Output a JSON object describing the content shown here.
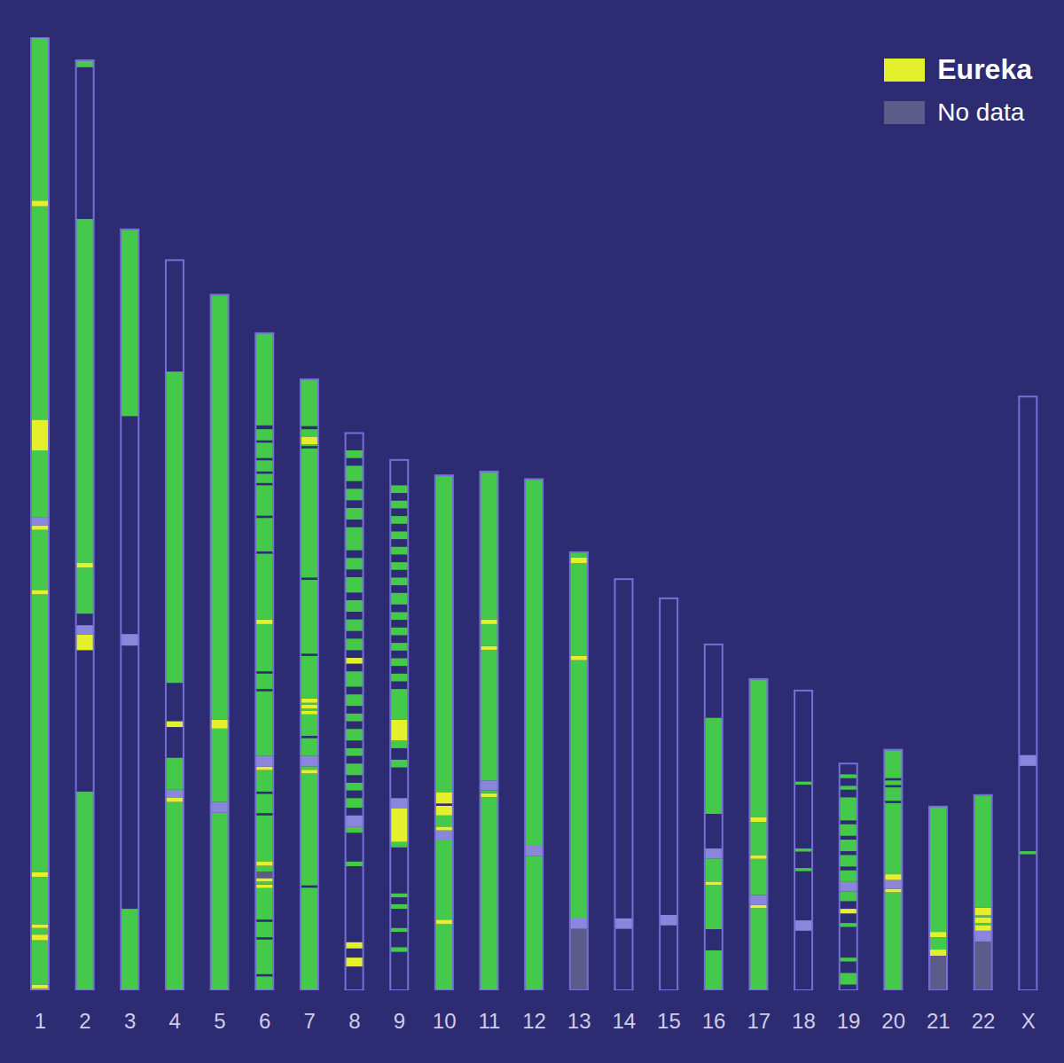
{
  "chart_data": {
    "type": "bar",
    "stacked": true,
    "tick_labels": "x",
    "legend": "top-right",
    "ylim": [
      0,
      248
    ],
    "categories": [
      "1",
      "2",
      "3",
      "4",
      "5",
      "6",
      "7",
      "8",
      "9",
      "10",
      "11",
      "12",
      "13",
      "14",
      "15",
      "16",
      "17",
      "18",
      "19",
      "20",
      "21",
      "22",
      "X"
    ],
    "series": [
      {
        "name": "Eureka",
        "color": "#e4f02c"
      },
      {
        "name": "No data",
        "color": "#5d5b8a"
      }
    ],
    "segments": [
      {
        "values": [
          0.5,
          1,
          11.5,
          1.5,
          1.7,
          1,
          12.3,
          1.2,
          72.3,
          1.2,
          15.6,
          1.2,
          2,
          17.5,
          8,
          55.5,
          1.5,
          42.5
        ],
        "colors": [
          "#45c94b",
          "#e4f02c",
          "#45c94b",
          "#e4f02c",
          "#45c94b",
          "#e4f02c",
          "#45c94b",
          "#e4f02c",
          "#45c94b",
          "#e4f02c",
          "#45c94b",
          "#e4f02c",
          "#8a86dc",
          "#45c94b",
          "#e4f02c",
          "#45c94b",
          "#e4f02c",
          "#45c94b"
        ]
      },
      {
        "values": [
          51.7,
          36.8,
          4.1,
          2.4,
          3,
          12,
          1.2,
          89.5,
          39.5,
          1.8
        ],
        "colors": [
          "#45c94b",
          null,
          "#e4f02c",
          "#8a86dc",
          null,
          "#45c94b",
          "#e4f02c",
          "#45c94b",
          null,
          "#45c94b"
        ]
      },
      {
        "values": [
          21.2,
          68.5,
          3,
          56.7,
          48.6
        ],
        "colors": [
          "#45c94b",
          null,
          "#8a86dc",
          null,
          "#45c94b"
        ]
      },
      {
        "values": [
          49,
          1.2,
          2,
          8.3,
          8,
          1.5,
          10,
          81,
          29
        ],
        "colors": [
          "#45c94b",
          "#e4f02c",
          "#8a86dc",
          "#45c94b",
          null,
          "#e4f02c",
          null,
          "#45c94b",
          null
        ]
      },
      {
        "values": [
          46.2,
          2.8,
          19.1,
          2.3,
          110.6
        ],
        "colors": [
          "#45c94b",
          "#8a86dc",
          "#45c94b",
          "#e4f02c",
          "#45c94b"
        ]
      },
      {
        "values": [
          3.6,
          0.6,
          9,
          0.6,
          4,
          0.6,
          8.2,
          0.9,
          0.8,
          0.9,
          1.7,
          1.5,
          1.2,
          11.9,
          0.6,
          5,
          0.6,
          5.6,
          0.9,
          2.8,
          16.8,
          0.6,
          4,
          0.6,
          12.3,
          1.2,
          17.1,
          0.6,
          8.7,
          0.6,
          7.9,
          0.6,
          2.4,
          0.6,
          2.9,
          0.6,
          4,
          0.6,
          2.9,
          1,
          24
        ],
        "colors": [
          "#45c94b",
          null,
          "#45c94b",
          null,
          "#45c94b",
          null,
          "#45c94b",
          "#e4f02c",
          "#45c94b",
          "#e4f02c",
          "#5d5b8a",
          "#45c94b",
          "#e4f02c",
          "#45c94b",
          null,
          "#45c94b",
          null,
          "#45c94b",
          "#e4f02c",
          "#8a86dc",
          "#45c94b",
          null,
          "#45c94b",
          null,
          "#45c94b",
          "#e4f02c",
          "#45c94b",
          null,
          "#45c94b",
          null,
          "#45c94b",
          null,
          "#45c94b",
          null,
          "#45c94b",
          null,
          "#45c94b",
          null,
          "#45c94b",
          null,
          "#45c94b"
        ]
      },
      {
        "values": [
          26.7,
          0.6,
          29.1,
          1,
          0.9,
          2.7,
          4.6,
          0.6,
          5.6,
          1,
          0.5,
          1,
          0.5,
          1.2,
          11,
          0.6,
          19.2,
          0.6,
          33.6,
          0.6,
          0.5,
          2,
          1.9,
          0.8,
          12.2
        ],
        "colors": [
          "#45c94b",
          null,
          "#45c94b",
          "#e4f02c",
          "#45c94b",
          "#8a86dc",
          "#45c94b",
          null,
          "#45c94b",
          "#e4f02c",
          "#45c94b",
          "#e4f02c",
          "#45c94b",
          "#e4f02c",
          "#45c94b",
          null,
          "#45c94b",
          null,
          "#45c94b",
          null,
          "#45c94b",
          "#e4f02c",
          "#45c94b",
          null,
          "#45c94b"
        ]
      },
      {
        "values": [
          6.2,
          2.3,
          2.4,
          1.6,
          19.8,
          1.2,
          7.5,
          1.5,
          3,
          2,
          2.5,
          2,
          2,
          2,
          3,
          2,
          2,
          2,
          3,
          2,
          2,
          2,
          3,
          2,
          4,
          2,
          1.5,
          2,
          3,
          2,
          3,
          2,
          3,
          2,
          4,
          2,
          3,
          2,
          6,
          2,
          3,
          2,
          3,
          2,
          4,
          2,
          2,
          4.5
        ],
        "colors": [
          null,
          "#e4f02c",
          null,
          "#e4f02c",
          null,
          "#45c94b",
          null,
          "#45c94b",
          "#8a86dc",
          null,
          "#45c94b",
          null,
          "#45c94b",
          null,
          "#45c94b",
          null,
          "#45c94b",
          null,
          "#45c94b",
          null,
          "#45c94b",
          null,
          "#45c94b",
          null,
          "#45c94b",
          null,
          "#e4f02c",
          null,
          "#45c94b",
          null,
          "#45c94b",
          null,
          "#45c94b",
          null,
          "#45c94b",
          null,
          "#45c94b",
          null,
          "#45c94b",
          null,
          "#45c94b",
          null,
          "#45c94b",
          null,
          "#45c94b",
          null,
          "#45c94b",
          null
        ]
      },
      {
        "values": [
          10,
          1.2,
          4,
          1,
          5,
          1.2,
          1.8,
          1,
          12,
          1.4,
          8.7,
          2.7,
          8,
          2,
          3,
          2,
          5.4,
          8,
          2,
          2,
          2,
          2,
          2,
          2,
          2,
          2,
          2,
          2,
          2,
          3,
          2,
          2,
          2,
          2,
          2,
          2,
          2,
          2,
          2,
          2,
          2,
          2,
          2,
          2,
          6.6
        ],
        "colors": [
          null,
          "#45c94b",
          null,
          "#45c94b",
          null,
          "#45c94b",
          null,
          "#45c94b",
          null,
          "#45c94b",
          "#e4f02c",
          "#8a86dc",
          null,
          "#45c94b",
          null,
          "#45c94b",
          "#e4f02c",
          "#45c94b",
          null,
          "#45c94b",
          null,
          "#45c94b",
          null,
          "#45c94b",
          null,
          "#45c94b",
          null,
          "#45c94b",
          null,
          "#45c94b",
          null,
          "#45c94b",
          null,
          "#45c94b",
          null,
          "#45c94b",
          null,
          "#45c94b",
          null,
          "#45c94b",
          null,
          "#45c94b",
          null,
          "#45c94b",
          null
        ]
      },
      {
        "values": [
          17.2,
          1.2,
          20.6,
          2.6,
          1,
          2.9,
          2.5,
          0.6,
          3,
          82.4
        ],
        "colors": [
          "#45c94b",
          "#e4f02c",
          "#45c94b",
          "#8a86dc",
          "#e4f02c",
          "#45c94b",
          "#e4f02c",
          null,
          "#e4f02c",
          "#45c94b"
        ]
      },
      {
        "values": [
          50.3,
          1,
          0.7,
          2.6,
          34,
          1,
          5.7,
          1.2,
          38.5
        ],
        "colors": [
          "#45c94b",
          "#e4f02c",
          "#45c94b",
          "#8a86dc",
          "#45c94b",
          "#e4f02c",
          "#45c94b",
          "#e4f02c",
          "#45c94b"
        ]
      },
      {
        "values": [
          35,
          2.6,
          95.4
        ],
        "colors": [
          "#45c94b",
          "#8a86dc",
          "#45c94b"
        ]
      },
      {
        "values": [
          16,
          2.7,
          67.2,
          1.2,
          24,
          1.5,
          1.4
        ],
        "colors": [
          "#5d5b8a",
          "#8a86dc",
          "#45c94b",
          "#e4f02c",
          "#45c94b",
          "#e4f02c",
          "#45c94b"
        ]
      },
      {
        "values": [
          16,
          2.7,
          88.3
        ],
        "colors": [
          null,
          "#8a86dc",
          null
        ]
      },
      {
        "values": [
          16.9,
          2.7,
          82.4
        ],
        "colors": [
          null,
          "#8a86dc",
          null
        ]
      },
      {
        "values": [
          10.4,
          5.5,
          11.5,
          0.9,
          6,
          2.6,
          9,
          25,
          19.1
        ],
        "colors": [
          "#45c94b",
          null,
          "#45c94b",
          "#e4f02c",
          "#45c94b",
          "#8a86dc",
          null,
          "#45c94b",
          null
        ]
      },
      {
        "values": [
          21.4,
          0.8,
          2.6,
          9.4,
          1,
          8.6,
          1.2,
          36
        ],
        "colors": [
          "#45c94b",
          "#e4f02c",
          "#8a86dc",
          "#45c94b",
          "#e4f02c",
          "#45c94b",
          "#e4f02c",
          "#45c94b"
        ]
      },
      {
        "values": [
          15.5,
          2.7,
          12.8,
          0.8,
          4.3,
          0.8,
          16.6,
          0.8,
          23.7
        ],
        "colors": [
          null,
          "#8a86dc",
          null,
          "#45c94b",
          null,
          "#45c94b",
          null,
          "#45c94b",
          null
        ]
      },
      {
        "values": [
          1.5,
          3,
          3,
          1,
          8,
          1,
          2.5,
          1.2,
          2,
          2.5,
          2.5,
          3,
          1,
          3,
          1,
          3,
          1,
          3,
          1,
          6,
          2,
          1,
          2,
          1,
          2.8
        ],
        "colors": [
          null,
          "#45c94b",
          null,
          "#45c94b",
          null,
          "#45c94b",
          null,
          "#e4f02c",
          null,
          "#45c94b",
          "#8a86dc",
          "#45c94b",
          null,
          "#45c94b",
          null,
          "#45c94b",
          null,
          "#45c94b",
          null,
          "#45c94b",
          null,
          "#45c94b",
          null,
          "#45c94b",
          null
        ]
      },
      {
        "values": [
          25.5,
          0.9,
          2.3,
          1.5,
          18.5,
          0.6,
          3.5,
          0.6,
          1.2,
          0.6,
          7.4
        ],
        "colors": [
          "#45c94b",
          "#e4f02c",
          "#8a86dc",
          "#e4f02c",
          "#45c94b",
          null,
          "#45c94b",
          null,
          "#45c94b",
          null,
          "#45c94b"
        ]
      },
      {
        "values": [
          9,
          1.6,
          3.2,
          1.4,
          32.6
        ],
        "colors": [
          "#5d5b8a",
          "#e4f02c",
          "#45c94b",
          "#e4f02c",
          "#45c94b"
        ]
      },
      {
        "values": [
          12.7,
          2.8,
          1.5,
          0.5,
          1.5,
          0.5,
          2,
          29.3
        ],
        "colors": [
          "#5d5b8a",
          "#8a86dc",
          "#e4f02c",
          "#45c94b",
          "#e4f02c",
          "#45c94b",
          "#e4f02c",
          "#45c94b"
        ]
      },
      {
        "values": [
          35.4,
          0.8,
          22.2,
          2.8,
          93.3
        ],
        "colors": [
          null,
          "#45c94b",
          null,
          "#8a86dc",
          null
        ]
      }
    ]
  }
}
